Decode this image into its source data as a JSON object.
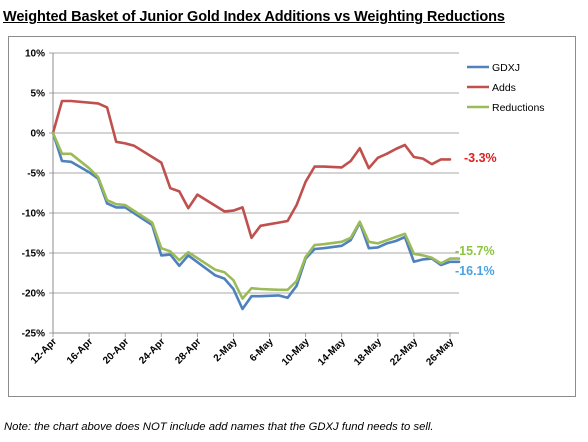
{
  "title": "Weighted Basket of Junior Gold Index Additions vs Weighting Reductions",
  "note": "Note: the chart above does NOT include add names that the GDXJ fund needs to sell.",
  "chart_data": {
    "type": "line",
    "ylim": [
      -25,
      10
    ],
    "yticks": [
      10,
      5,
      0,
      -5,
      -10,
      -15,
      -20,
      -25
    ],
    "ytick_labels": [
      "10%",
      "5%",
      "0%",
      "-5%",
      "-10%",
      "-15%",
      "-20%",
      "-25%"
    ],
    "xlim": [
      0,
      45
    ],
    "xtick_positions": [
      0,
      4,
      8,
      12,
      16,
      20,
      24,
      28,
      32,
      36,
      40,
      44
    ],
    "xtick_labels": [
      "12-Apr",
      "16-Apr",
      "20-Apr",
      "24-Apr",
      "28-Apr",
      "2-May",
      "6-May",
      "10-May",
      "14-May",
      "18-May",
      "22-May",
      "26-May"
    ],
    "grid": "horizontal",
    "legend": "top-right",
    "series": [
      {
        "name": "GDXJ",
        "color": "#4f81bd",
        "x": [
          0,
          1,
          2,
          4,
          5,
          6,
          7,
          8,
          11,
          12,
          13,
          14,
          15,
          18,
          19,
          20,
          21,
          22,
          23,
          25,
          26,
          27,
          28,
          29,
          30,
          32,
          33,
          34,
          35,
          36,
          37,
          38,
          39,
          40,
          41,
          42,
          43,
          44,
          45
        ],
        "y": [
          0,
          -3.5,
          -3.6,
          -4.9,
          -5.7,
          -8.8,
          -9.3,
          -9.3,
          -11.5,
          -15.3,
          -15.2,
          -16.6,
          -15.3,
          -17.8,
          -18.2,
          -19.5,
          -22.0,
          -20.4,
          -20.4,
          -20.3,
          -20.6,
          -19.1,
          -15.7,
          -14.5,
          -14.4,
          -14.1,
          -13.4,
          -11.2,
          -14.4,
          -14.3,
          -13.8,
          -13.5,
          -13.0,
          -16.1,
          -15.8,
          -15.7,
          -16.5,
          -16.1,
          -16.1
        ],
        "end_label": "-16.1%"
      },
      {
        "name": "Adds",
        "color": "#c0504d",
        "x": [
          0,
          1,
          2,
          5,
          6,
          7,
          8,
          9,
          12,
          13,
          14,
          15,
          16,
          19,
          20,
          21,
          22,
          23,
          24,
          25,
          26,
          27,
          28,
          29,
          30,
          32,
          33,
          34,
          35,
          36,
          37,
          38,
          39,
          40,
          41,
          42,
          43,
          44
        ],
        "y": [
          0,
          4.0,
          4.0,
          3.7,
          3.2,
          -1.1,
          -1.3,
          -1.6,
          -3.7,
          -6.9,
          -7.3,
          -9.4,
          -7.7,
          -9.8,
          -9.7,
          -9.3,
          -13.1,
          -11.6,
          -11.4,
          -11.2,
          -11.0,
          -9.0,
          -6.1,
          -4.2,
          -4.2,
          -4.3,
          -3.5,
          -1.9,
          -4.4,
          -3.1,
          -2.6,
          -2.0,
          -1.5,
          -3.0,
          -3.2,
          -3.9,
          -3.3,
          -3.3
        ],
        "end_label": "-3.3%"
      },
      {
        "name": "Reductions",
        "color": "#9bbb59",
        "x": [
          0,
          1,
          2,
          4,
          5,
          6,
          7,
          8,
          11,
          12,
          13,
          14,
          15,
          18,
          19,
          20,
          21,
          22,
          23,
          25,
          26,
          27,
          28,
          29,
          30,
          32,
          33,
          34,
          35,
          36,
          37,
          38,
          39,
          40,
          41,
          42,
          43,
          44,
          45
        ],
        "y": [
          0,
          -2.6,
          -2.6,
          -4.4,
          -5.5,
          -8.4,
          -8.9,
          -9.0,
          -11.2,
          -14.4,
          -14.8,
          -15.9,
          -14.9,
          -17.1,
          -17.4,
          -18.4,
          -20.7,
          -19.4,
          -19.5,
          -19.6,
          -19.6,
          -18.5,
          -15.5,
          -14.0,
          -13.9,
          -13.6,
          -13.1,
          -11.1,
          -13.6,
          -13.8,
          -13.4,
          -13.0,
          -12.6,
          -15.1,
          -15.3,
          -15.6,
          -16.3,
          -15.7,
          -15.7
        ],
        "end_label": "-15.7%"
      }
    ]
  }
}
